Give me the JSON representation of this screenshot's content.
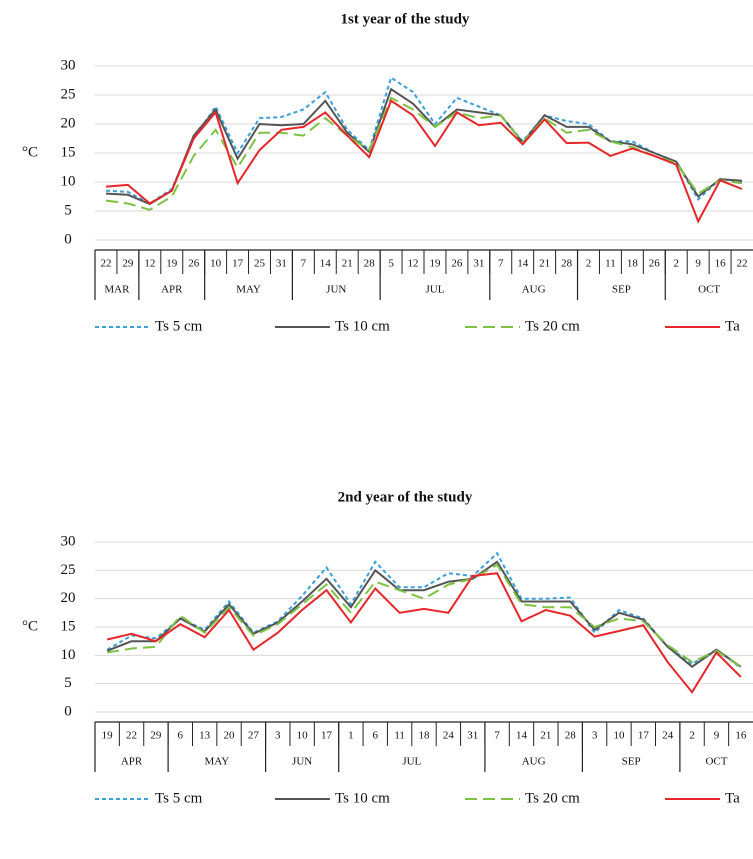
{
  "chart_data": [
    {
      "type": "line",
      "title": "1st year of the study",
      "ylabel": "°C",
      "categories": [
        "22",
        "29",
        "12",
        "19",
        "26",
        "10",
        "17",
        "25",
        "31",
        "7",
        "14",
        "21",
        "28",
        "5",
        "12",
        "19",
        "26",
        "31",
        "7",
        "14",
        "21",
        "28",
        "2",
        "11",
        "18",
        "26",
        "2",
        "9",
        "16",
        "22"
      ],
      "category_months": [
        "MAR",
        "MAR",
        "APR",
        "APR",
        "APR",
        "MAY",
        "MAY",
        "MAY",
        "MAY",
        "JUN",
        "JUN",
        "JUN",
        "JUN",
        "JUL",
        "JUL",
        "JUL",
        "JUL",
        "JUL",
        "AUG",
        "AUG",
        "AUG",
        "AUG",
        "SEP",
        "SEP",
        "SEP",
        "SEP",
        "OCT",
        "OCT",
        "OCT",
        "OCT"
      ],
      "ylim": [
        0,
        30
      ],
      "yticks": [
        0,
        5,
        10,
        15,
        20,
        25,
        30
      ],
      "grid": true,
      "series": [
        {
          "name": "Ts 5 cm",
          "color": "#3aa0dc",
          "style": "dashed",
          "values": [
            8.5,
            8.3,
            6.3,
            8.8,
            17.5,
            23,
            15,
            21,
            21.2,
            22.5,
            25.5,
            19,
            15.5,
            28,
            25.5,
            20,
            24.5,
            23,
            21.5,
            17,
            21.5,
            20.5,
            20,
            17,
            17,
            15,
            13.5,
            7,
            10.5,
            10
          ]
        },
        {
          "name": "Ts 10 cm",
          "color": "#555555",
          "style": "solid",
          "values": [
            8,
            7.8,
            6.2,
            8.5,
            18,
            22.5,
            14,
            20,
            19.8,
            20,
            24,
            18.5,
            15.2,
            26,
            23.5,
            19.5,
            22.5,
            22,
            21.5,
            16.8,
            21.5,
            19.5,
            19.5,
            17,
            16.5,
            15,
            13.5,
            7.5,
            10.5,
            10.2
          ]
        },
        {
          "name": "Ts 20 cm",
          "color": "#7dc242",
          "style": "longdash",
          "values": [
            6.8,
            6.3,
            5.2,
            7.5,
            14.5,
            19,
            12.5,
            18.5,
            18.5,
            18,
            21,
            18,
            15.5,
            24.5,
            22.5,
            19.5,
            22,
            21,
            21.5,
            16.8,
            21,
            18.5,
            19,
            17,
            16,
            14.5,
            13.3,
            8,
            10.3,
            9.8
          ]
        },
        {
          "name": "Ta",
          "color": "#e8262a",
          "style": "solid",
          "values": [
            9.2,
            9.5,
            6.3,
            8.5,
            17.5,
            22,
            9.8,
            15.5,
            19,
            19.5,
            22,
            18,
            14.3,
            24,
            21.5,
            16.2,
            22,
            19.8,
            20.2,
            16.5,
            20.8,
            16.7,
            16.8,
            14.5,
            15.8,
            14.5,
            13,
            3.2,
            10.3,
            8.8
          ]
        }
      ]
    },
    {
      "type": "line",
      "title": "2nd year of the study",
      "ylabel": "°C",
      "categories": [
        "19",
        "22",
        "29",
        "6",
        "13",
        "20",
        "27",
        "3",
        "10",
        "17",
        "1",
        "6",
        "11",
        "18",
        "24",
        "31",
        "7",
        "14",
        "21",
        "28",
        "3",
        "10",
        "17",
        "24",
        "2",
        "9",
        "16"
      ],
      "category_months": [
        "APR",
        "APR",
        "APR",
        "MAY",
        "MAY",
        "MAY",
        "MAY",
        "JUN",
        "JUN",
        "JUN",
        "JUL",
        "JUL",
        "JUL",
        "JUL",
        "JUL",
        "JUL",
        "AUG",
        "AUG",
        "AUG",
        "AUG",
        "SEP",
        "SEP",
        "SEP",
        "SEP",
        "OCT",
        "OCT",
        "OCT"
      ],
      "ylim": [
        0,
        30
      ],
      "yticks": [
        0,
        5,
        10,
        15,
        20,
        25,
        30
      ],
      "grid": true,
      "series": [
        {
          "name": "Ts 5 cm",
          "color": "#3aa0dc",
          "style": "dashed",
          "values": [
            11,
            13.5,
            13,
            16.5,
            14.5,
            19.5,
            14,
            16,
            20.5,
            25.5,
            19,
            26.5,
            22,
            22,
            24.5,
            24,
            28,
            20,
            20,
            20.2,
            14,
            18,
            16.5,
            11.5,
            8.5,
            11,
            7.8
          ]
        },
        {
          "name": "Ts 10 cm",
          "color": "#555555",
          "style": "solid",
          "values": [
            10.8,
            12.5,
            12.5,
            16.5,
            14.2,
            19,
            13.8,
            15.8,
            19.5,
            23.5,
            18.5,
            25,
            21.5,
            21.5,
            23,
            23.5,
            26.5,
            19.5,
            19.5,
            19.5,
            14.5,
            17.5,
            16.3,
            11.5,
            8,
            11,
            8
          ]
        },
        {
          "name": "Ts 20 cm",
          "color": "#7dc242",
          "style": "longdash",
          "values": [
            10.5,
            11.2,
            11.5,
            17,
            14,
            18.5,
            13.5,
            15.5,
            19,
            22.5,
            17.5,
            23,
            21.5,
            20,
            22.5,
            23.5,
            26,
            19,
            18.5,
            18.5,
            15,
            16.5,
            16,
            11.8,
            8.8,
            10.8,
            8
          ]
        },
        {
          "name": "Ta",
          "color": "#e8262a",
          "style": "solid",
          "values": [
            12.8,
            13.8,
            12.5,
            15.5,
            13.2,
            18,
            11,
            14,
            18,
            21.5,
            15.8,
            21.8,
            17.5,
            18.2,
            17.5,
            24,
            24.5,
            16,
            18,
            17,
            13.3,
            14.3,
            15.3,
            8.8,
            3.5,
            10.5,
            6.2
          ]
        }
      ]
    }
  ]
}
